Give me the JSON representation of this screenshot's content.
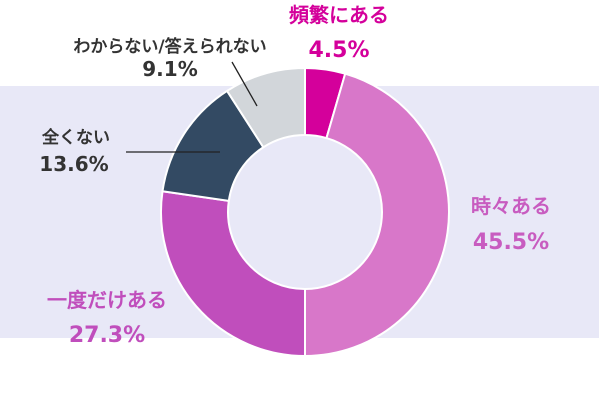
{
  "chart_data": {
    "type": "pie",
    "donut": true,
    "start": "top, clockwise",
    "slices": [
      {
        "name": "頻繁にある",
        "value": 4.5,
        "pct_label": "4.5%",
        "color": "#d4009b",
        "label_color": "#d4009b"
      },
      {
        "name": "時々ある",
        "value": 45.5,
        "pct_label": "45.5%",
        "color": "#d877c9",
        "label_color": "#c85cc0"
      },
      {
        "name": "一度だけある",
        "value": 27.3,
        "pct_label": "27.3%",
        "color": "#c04ebc",
        "label_color": "#c04ebc"
      },
      {
        "name": "全くない",
        "value": 13.6,
        "pct_label": "13.6%",
        "color": "#334a63",
        "label_color": "#333333"
      },
      {
        "name": "わからない/答えられない",
        "value": 9.1,
        "pct_label": "9.1%",
        "color": "#d2d6da",
        "label_color": "#333333"
      }
    ],
    "background_band_color": "#e8e8f7"
  }
}
